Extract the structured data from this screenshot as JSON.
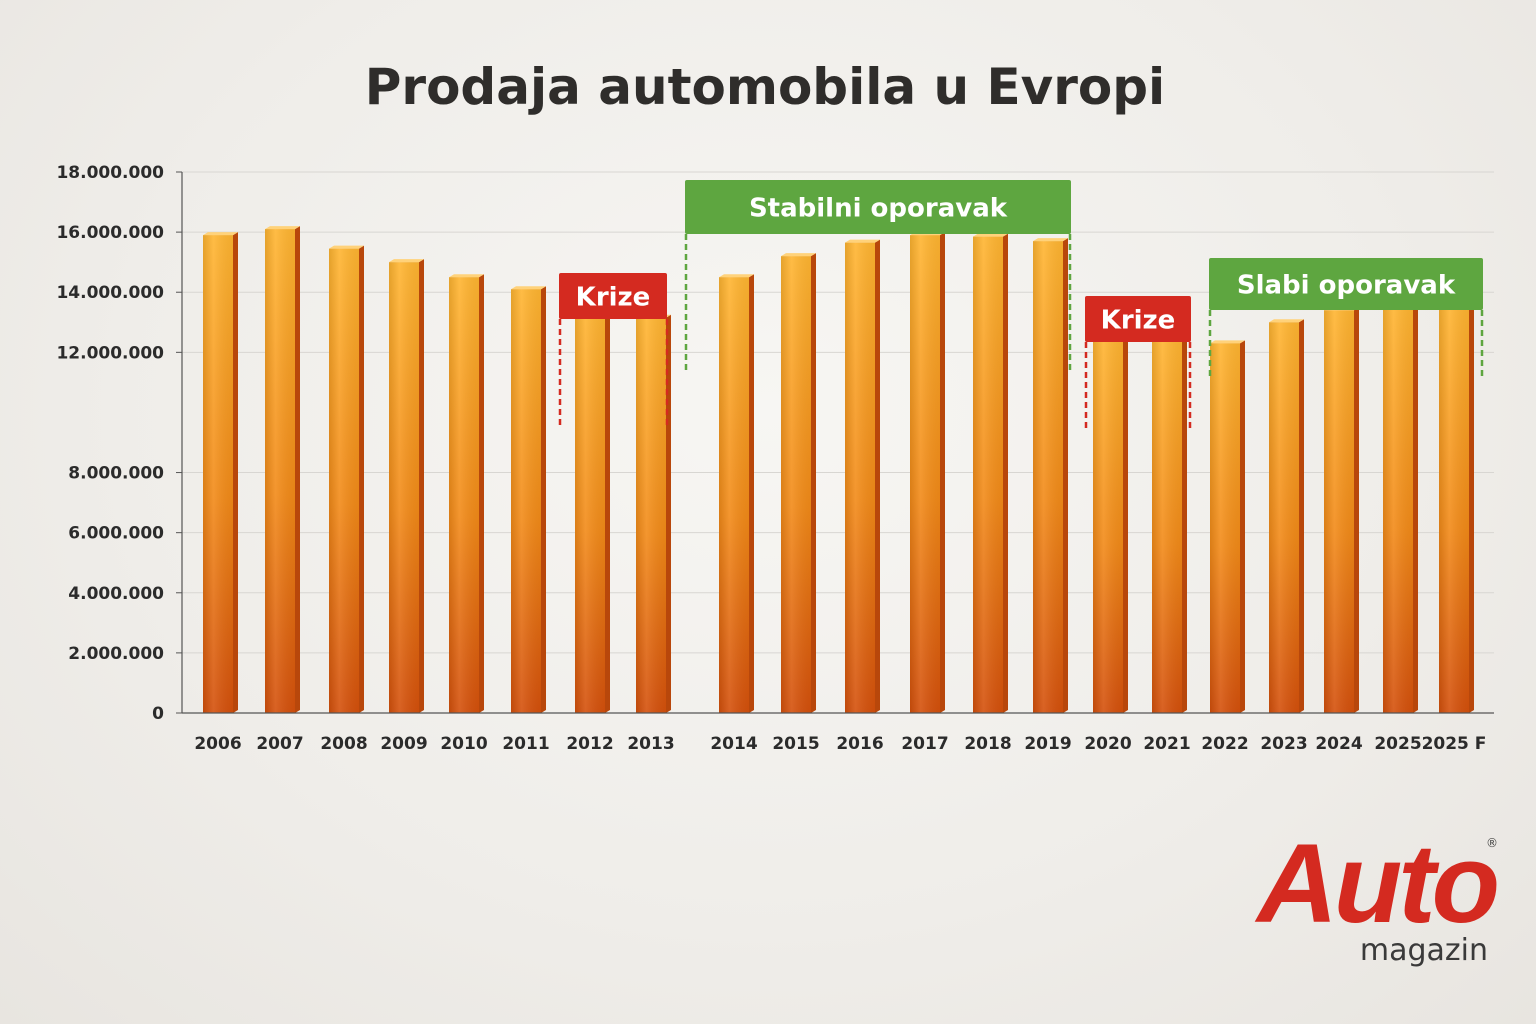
{
  "chart_data": {
    "type": "bar",
    "title": "Prodaja automobila u Evropi",
    "xlabel": "",
    "ylabel": "",
    "ylim": [
      0,
      18000000
    ],
    "ytick_labels": [
      "0",
      "2.000.000",
      "4.000.000",
      "6.000.000",
      "8.000.000",
      "12.000.000",
      "14.000.000",
      "16.000.000",
      "18.000.000"
    ],
    "ytick_values": [
      0,
      2000000,
      4000000,
      6000000,
      8000000,
      12000000,
      14000000,
      16000000,
      18000000
    ],
    "categories": [
      "2006",
      "2007",
      "2008",
      "2009",
      "2010",
      "2011",
      "2012",
      "2013",
      "2014",
      "2015",
      "2016",
      "2017",
      "2018",
      "2019",
      "2020",
      "2021",
      "2022",
      "2023",
      "2024",
      "2025",
      "2025 F"
    ],
    "values": [
      15900000,
      16100000,
      15450000,
      15000000,
      14500000,
      14100000,
      13400000,
      13150000,
      14500000,
      15200000,
      15650000,
      15900000,
      15850000,
      15700000,
      12550000,
      12450000,
      12300000,
      13000000,
      13400000,
      13550000,
      13650000
    ],
    "grid": true,
    "colors": {
      "bar_top": "#ffb32e",
      "bar_bottom": "#d9500a",
      "bar_side": "#b8470b",
      "crisis": "#d42a20",
      "recovery": "#5ea640",
      "axis": "#555555",
      "grid": "#d8d6d2"
    },
    "annotations": [
      {
        "label": "Krize",
        "type": "crisis",
        "from": "2012",
        "to": "2013"
      },
      {
        "label": "Stabilni oporavak",
        "type": "recovery",
        "from": "2014",
        "to": "2019"
      },
      {
        "label": "Krize",
        "type": "crisis",
        "from": "2020",
        "to": "2021"
      },
      {
        "label": "Slabi oporavak",
        "type": "recovery",
        "from": "2022",
        "to": "2025 F"
      }
    ]
  },
  "logo": {
    "word": "Auto",
    "sub": "magazin",
    "reg": "®"
  }
}
